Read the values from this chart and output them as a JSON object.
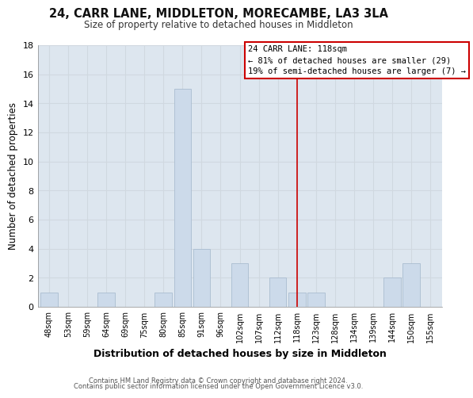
{
  "title": "24, CARR LANE, MIDDLETON, MORECAMBE, LA3 3LA",
  "subtitle": "Size of property relative to detached houses in Middleton",
  "xlabel": "Distribution of detached houses by size in Middleton",
  "ylabel": "Number of detached properties",
  "footer_line1": "Contains HM Land Registry data © Crown copyright and database right 2024.",
  "footer_line2": "Contains public sector information licensed under the Open Government Licence v3.0.",
  "bar_labels": [
    "48sqm",
    "53sqm",
    "59sqm",
    "64sqm",
    "69sqm",
    "75sqm",
    "80sqm",
    "85sqm",
    "91sqm",
    "96sqm",
    "102sqm",
    "107sqm",
    "112sqm",
    "118sqm",
    "123sqm",
    "128sqm",
    "134sqm",
    "139sqm",
    "144sqm",
    "150sqm",
    "155sqm"
  ],
  "bar_values": [
    1,
    0,
    0,
    1,
    0,
    0,
    1,
    15,
    4,
    0,
    3,
    0,
    2,
    1,
    1,
    0,
    0,
    0,
    2,
    3,
    0
  ],
  "bar_color": "#ccdaea",
  "bar_edge_color": "#aabdd0",
  "vline_index": 13,
  "vline_color": "#cc0000",
  "ylim": [
    0,
    18
  ],
  "yticks": [
    0,
    2,
    4,
    6,
    8,
    10,
    12,
    14,
    16,
    18
  ],
  "annotation_title": "24 CARR LANE: 118sqm",
  "annotation_line1": "← 81% of detached houses are smaller (29)",
  "annotation_line2": "19% of semi-detached houses are larger (7) →",
  "background_color": "#ffffff",
  "grid_color": "#d0d8e0",
  "axes_bg_color": "#dde6ef"
}
